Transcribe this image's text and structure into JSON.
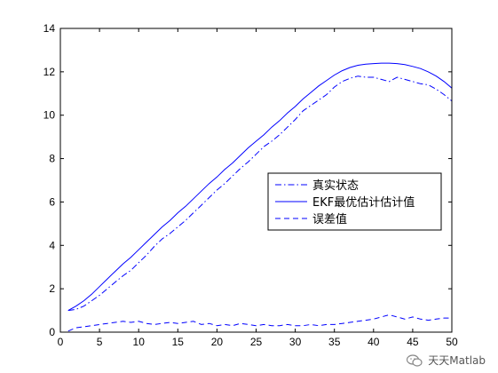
{
  "chart_data": {
    "type": "line",
    "xlim": [
      0,
      50
    ],
    "ylim": [
      0,
      14
    ],
    "xticks": [
      0,
      5,
      10,
      15,
      20,
      25,
      30,
      35,
      40,
      45,
      50
    ],
    "yticks": [
      0,
      2,
      4,
      6,
      8,
      10,
      12,
      14
    ],
    "legend_position": "center-right",
    "grid": false,
    "series": [
      {
        "name": "真实状态",
        "style": "dashdot",
        "color": "#0000ff",
        "x": [
          1,
          2,
          3,
          4,
          5,
          6,
          7,
          8,
          9,
          10,
          11,
          12,
          13,
          14,
          15,
          16,
          17,
          18,
          19,
          20,
          21,
          22,
          23,
          24,
          25,
          26,
          27,
          28,
          29,
          30,
          31,
          32,
          33,
          34,
          35,
          36,
          37,
          38,
          39,
          40,
          41,
          42,
          43,
          44,
          45,
          46,
          47,
          48,
          49,
          50
        ],
        "y": [
          1.0,
          1.05,
          1.2,
          1.45,
          1.7,
          2.0,
          2.3,
          2.6,
          2.85,
          3.2,
          3.55,
          3.95,
          4.3,
          4.55,
          4.85,
          5.15,
          5.5,
          5.85,
          6.2,
          6.55,
          6.85,
          7.2,
          7.55,
          7.85,
          8.2,
          8.55,
          8.8,
          9.1,
          9.45,
          9.8,
          10.2,
          10.45,
          10.7,
          10.95,
          11.3,
          11.55,
          11.7,
          11.8,
          11.75,
          11.75,
          11.65,
          11.55,
          11.75,
          11.65,
          11.55,
          11.45,
          11.4,
          11.2,
          10.95,
          10.65
        ]
      },
      {
        "name": "EKF最优估计估计值",
        "style": "solid",
        "color": "#0000ff",
        "x": [
          1,
          2,
          3,
          4,
          5,
          6,
          7,
          8,
          9,
          10,
          11,
          12,
          13,
          14,
          15,
          16,
          17,
          18,
          19,
          20,
          21,
          22,
          23,
          24,
          25,
          26,
          27,
          28,
          29,
          30,
          31,
          32,
          33,
          34,
          35,
          36,
          37,
          38,
          39,
          40,
          41,
          42,
          43,
          44,
          45,
          46,
          47,
          48,
          49,
          50
        ],
        "y": [
          1.0,
          1.2,
          1.45,
          1.75,
          2.1,
          2.45,
          2.8,
          3.15,
          3.45,
          3.8,
          4.15,
          4.5,
          4.85,
          5.15,
          5.5,
          5.8,
          6.15,
          6.5,
          6.85,
          7.15,
          7.5,
          7.8,
          8.15,
          8.5,
          8.8,
          9.1,
          9.45,
          9.75,
          10.1,
          10.4,
          10.75,
          11.05,
          11.35,
          11.6,
          11.85,
          12.05,
          12.2,
          12.3,
          12.35,
          12.38,
          12.4,
          12.4,
          12.38,
          12.33,
          12.25,
          12.15,
          12.0,
          11.8,
          11.55,
          11.25
        ]
      },
      {
        "name": "误差值",
        "style": "dashed",
        "color": "#0000ff",
        "x": [
          1,
          2,
          3,
          4,
          5,
          6,
          7,
          8,
          9,
          10,
          11,
          12,
          13,
          14,
          15,
          16,
          17,
          18,
          19,
          20,
          21,
          22,
          23,
          24,
          25,
          26,
          27,
          28,
          29,
          30,
          31,
          32,
          33,
          34,
          35,
          36,
          37,
          38,
          39,
          40,
          41,
          42,
          43,
          44,
          45,
          46,
          47,
          48,
          49,
          50
        ],
        "y": [
          0.05,
          0.2,
          0.25,
          0.3,
          0.35,
          0.4,
          0.45,
          0.5,
          0.45,
          0.5,
          0.4,
          0.35,
          0.4,
          0.45,
          0.4,
          0.45,
          0.5,
          0.35,
          0.4,
          0.3,
          0.35,
          0.3,
          0.4,
          0.35,
          0.3,
          0.35,
          0.3,
          0.3,
          0.35,
          0.3,
          0.3,
          0.35,
          0.3,
          0.35,
          0.35,
          0.4,
          0.45,
          0.5,
          0.55,
          0.6,
          0.7,
          0.8,
          0.7,
          0.6,
          0.7,
          0.6,
          0.55,
          0.6,
          0.65,
          0.65
        ]
      }
    ]
  },
  "watermark": {
    "text": "天天Matlab",
    "icon": "wechat-icon"
  }
}
